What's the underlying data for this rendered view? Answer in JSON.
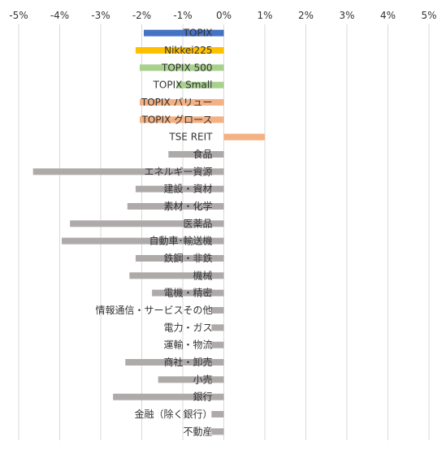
{
  "chart_data": {
    "type": "bar",
    "orientation": "horizontal",
    "xlim": [
      -5,
      5
    ],
    "x_ticks": [
      -5,
      -4,
      -3,
      -2,
      -1,
      0,
      1,
      2,
      3,
      4,
      5
    ],
    "x_tick_labels": [
      "-5%",
      "-4%",
      "-3%",
      "-2%",
      "-1%",
      "0%",
      "1%",
      "2%",
      "3%",
      "4%",
      "5%"
    ],
    "tick_position": "top",
    "grid": true,
    "categories": [
      "TOPIX",
      "Nikkei225",
      "TOPIX 500",
      "TOPIX Small",
      "TOPIX バリュー",
      "TOPIX グロース",
      "TSE REIT",
      "食品",
      "エネルギー資源",
      "建設・資材",
      "素材・化学",
      "医薬品",
      "自動車･輸送機",
      "鉄鋼・非鉄",
      "機械",
      "電機・精密",
      "情報通信・サービスその他",
      "電力・ガス",
      "運輸・物流",
      "商社・卸売",
      "小売",
      "銀行",
      "金融（除く銀行）",
      "不動産"
    ],
    "values": [
      -1.95,
      -2.15,
      -2.05,
      -1.15,
      -2.05,
      -2.05,
      1.0,
      -1.35,
      -4.65,
      -2.15,
      -2.35,
      -3.75,
      -3.95,
      -2.15,
      -2.3,
      -1.75,
      -0.3,
      -0.3,
      -0.3,
      -2.4,
      -1.6,
      -2.7,
      -0.3,
      -0.3
    ],
    "colors": [
      "#4472c4",
      "#ffc000",
      "#a9d18e",
      "#a9d18e",
      "#f4b183",
      "#f4b183",
      "#f4b183",
      "#aeaaaa",
      "#aeaaaa",
      "#aeaaaa",
      "#aeaaaa",
      "#aeaaaa",
      "#aeaaaa",
      "#aeaaaa",
      "#aeaaaa",
      "#aeaaaa",
      "#aeaaaa",
      "#aeaaaa",
      "#aeaaaa",
      "#aeaaaa",
      "#aeaaaa",
      "#aeaaaa",
      "#aeaaaa",
      "#aeaaaa"
    ]
  }
}
